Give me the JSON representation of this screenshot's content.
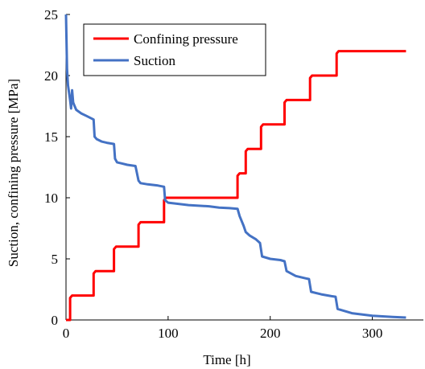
{
  "chart_data": {
    "type": "line",
    "title": "",
    "xlabel": "Time [h]",
    "ylabel": "Suction, confining pressure [MPa]",
    "xlim": [
      0,
      350
    ],
    "ylim": [
      0,
      25
    ],
    "xticks": [
      0,
      100,
      200,
      300
    ],
    "yticks": [
      0,
      5,
      10,
      15,
      20,
      25
    ],
    "tick_labels_x": [
      "0",
      "100",
      "200",
      "300"
    ],
    "tick_labels_y": [
      "0",
      "5",
      "10",
      "15",
      "20",
      "25"
    ],
    "grid": false,
    "legend_position": "top-left",
    "series": [
      {
        "name": "Confining pressure",
        "color": "#ff0000",
        "x": [
          0,
          4,
          4,
          6,
          25,
          27,
          27,
          29,
          45,
          47,
          47,
          49,
          68,
          71,
          71,
          73,
          93,
          96,
          96,
          98,
          165,
          168,
          168,
          170,
          173,
          176,
          176,
          178,
          188,
          191,
          191,
          193,
          211,
          214,
          214,
          216,
          236,
          239,
          239,
          241,
          262,
          265,
          265,
          267,
          333
        ],
        "values": [
          0,
          0,
          1.8,
          2,
          2,
          2,
          3.8,
          4,
          4,
          4,
          5.8,
          6,
          6,
          6,
          7.8,
          8,
          8,
          8,
          9.8,
          10,
          10,
          10,
          11.8,
          12,
          12,
          12,
          13.8,
          14,
          14,
          14,
          15.8,
          16,
          16,
          16,
          17.8,
          18,
          18,
          18,
          19.8,
          20,
          20,
          20,
          21.8,
          22,
          22
        ]
      },
      {
        "name": "Suction",
        "color": "#4472c4",
        "x": [
          0,
          1,
          2,
          3,
          4,
          5,
          6,
          7,
          8,
          10,
          15,
          20,
          27,
          28,
          30,
          35,
          40,
          47,
          48,
          50,
          55,
          60,
          68,
          71,
          73,
          80,
          90,
          96,
          97,
          100,
          120,
          140,
          150,
          160,
          168,
          170,
          174,
          176,
          180,
          186,
          190,
          192,
          200,
          210,
          214,
          216,
          225,
          235,
          238,
          240,
          250,
          260,
          264,
          266,
          280,
          300,
          320,
          333
        ],
        "values": [
          25,
          20.5,
          19.2,
          18.6,
          18.0,
          17.3,
          18.8,
          17.8,
          17.6,
          17.2,
          16.9,
          16.7,
          16.4,
          15.0,
          14.8,
          14.6,
          14.5,
          14.4,
          13.2,
          12.9,
          12.8,
          12.7,
          12.6,
          11.4,
          11.2,
          11.1,
          11.0,
          10.9,
          9.8,
          9.6,
          9.4,
          9.3,
          9.2,
          9.15,
          9.1,
          8.5,
          7.7,
          7.2,
          6.9,
          6.6,
          6.3,
          5.2,
          5.0,
          4.9,
          4.8,
          4.0,
          3.6,
          3.4,
          3.35,
          2.3,
          2.1,
          1.95,
          1.9,
          0.9,
          0.55,
          0.35,
          0.25,
          0.2
        ]
      }
    ]
  }
}
